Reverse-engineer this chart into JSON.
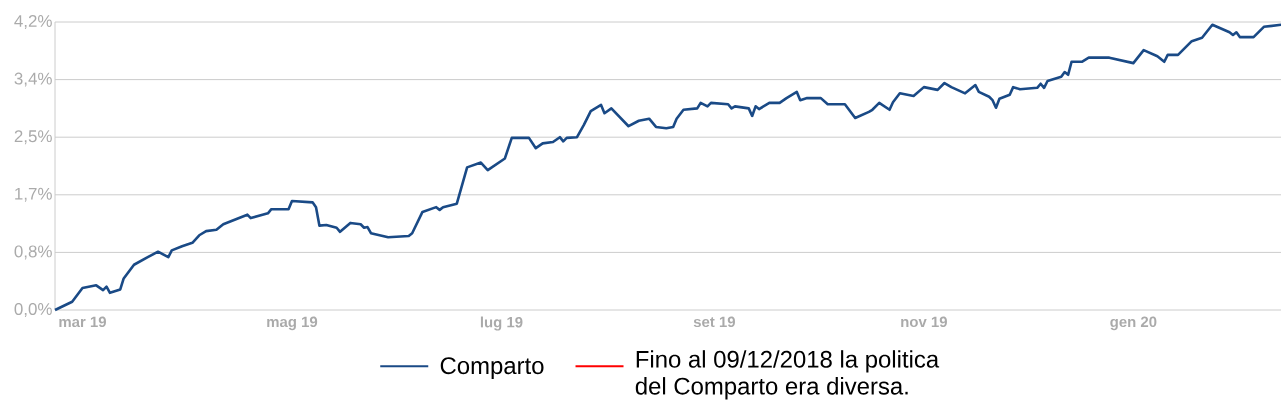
{
  "chart_data": {
    "type": "line",
    "x": [
      "2019-02-21",
      "2019-02-26",
      "2019-03-01",
      "2019-03-05",
      "2019-03-07",
      "2019-03-08",
      "2019-03-09",
      "2019-03-12",
      "2019-03-13",
      "2019-03-16",
      "2019-03-20",
      "2019-03-23",
      "2019-03-26",
      "2019-03-27",
      "2019-03-30",
      "2019-04-02",
      "2019-04-04",
      "2019-04-06",
      "2019-04-09",
      "2019-04-11",
      "2019-04-18",
      "2019-04-19",
      "2019-04-24",
      "2019-04-25",
      "2019-04-30",
      "2019-05-01",
      "2019-05-07",
      "2019-05-08",
      "2019-05-09",
      "2019-05-11",
      "2019-05-14",
      "2019-05-15",
      "2019-05-18",
      "2019-05-21",
      "2019-05-22",
      "2019-05-23",
      "2019-05-24",
      "2019-05-29",
      "2019-06-04",
      "2019-06-05",
      "2019-06-08",
      "2019-06-12",
      "2019-06-13",
      "2019-06-14",
      "2019-06-18",
      "2019-06-21",
      "2019-06-25",
      "2019-06-27",
      "2019-07-02",
      "2019-07-04",
      "2019-07-09",
      "2019-07-11",
      "2019-07-13",
      "2019-07-16",
      "2019-07-18",
      "2019-07-19",
      "2019-07-20",
      "2019-07-23",
      "2019-07-25",
      "2019-07-27",
      "2019-07-30",
      "2019-07-31",
      "2019-08-02",
      "2019-08-07",
      "2019-08-10",
      "2019-08-13",
      "2019-08-15",
      "2019-08-18",
      "2019-08-20",
      "2019-08-21",
      "2019-08-23",
      "2019-08-27",
      "2019-08-28",
      "2019-08-30",
      "2019-08-31",
      "2019-09-05",
      "2019-09-06",
      "2019-09-07",
      "2019-09-11",
      "2019-09-12",
      "2019-09-13",
      "2019-09-14",
      "2019-09-17",
      "2019-09-20",
      "2019-09-22",
      "2019-09-25",
      "2019-09-26",
      "2019-09-28",
      "2019-10-02",
      "2019-10-04",
      "2019-10-09",
      "2019-10-12",
      "2019-10-16",
      "2019-10-17",
      "2019-10-19",
      "2019-10-22",
      "2019-10-23",
      "2019-10-25",
      "2019-10-29",
      "2019-11-01",
      "2019-11-05",
      "2019-11-07",
      "2019-11-09",
      "2019-11-13",
      "2019-11-16",
      "2019-11-17",
      "2019-11-20",
      "2019-11-21",
      "2019-11-22",
      "2019-11-23",
      "2019-11-26",
      "2019-11-27",
      "2019-11-29",
      "2019-12-04",
      "2019-12-05",
      "2019-12-06",
      "2019-12-07",
      "2019-12-11",
      "2019-12-12",
      "2019-12-13",
      "2019-12-14",
      "2019-12-17",
      "2019-12-19",
      "2019-12-25",
      "2020-01-01",
      "2020-01-04",
      "2020-01-08",
      "2020-01-10",
      "2020-01-11",
      "2020-01-14",
      "2020-01-18",
      "2020-01-21",
      "2020-01-24",
      "2020-01-29",
      "2020-01-30",
      "2020-01-31",
      "2020-02-01",
      "2020-02-05",
      "2020-02-08",
      "2020-02-13"
    ],
    "series": [
      {
        "name": "Comparto",
        "color": "#1a4a86",
        "values": [
          0,
          0.12,
          0.32,
          0.36,
          0.29,
          0.34,
          0.25,
          0.3,
          0.46,
          0.66,
          0.77,
          0.85,
          0.77,
          0.87,
          0.93,
          0.98,
          1.09,
          1.15,
          1.17,
          1.25,
          1.39,
          1.34,
          1.41,
          1.47,
          1.47,
          1.59,
          1.57,
          1.5,
          1.23,
          1.24,
          1.2,
          1.14,
          1.27,
          1.25,
          1.2,
          1.21,
          1.12,
          1.06,
          1.08,
          1.12,
          1.43,
          1.5,
          1.46,
          1.5,
          1.55,
          2.08,
          2.15,
          2.04,
          2.21,
          2.51,
          2.51,
          2.36,
          2.43,
          2.45,
          2.52,
          2.46,
          2.51,
          2.52,
          2.7,
          2.9,
          2.99,
          2.87,
          2.94,
          2.68,
          2.76,
          2.79,
          2.67,
          2.65,
          2.67,
          2.79,
          2.92,
          2.94,
          3.02,
          2.97,
          3.02,
          3.0,
          2.94,
          2.97,
          2.94,
          2.83,
          2.97,
          2.93,
          3.02,
          3.02,
          3.09,
          3.18,
          3.06,
          3.09,
          3.09,
          3.0,
          3.0,
          2.8,
          2.89,
          2.92,
          3.02,
          2.92,
          3.03,
          3.16,
          3.12,
          3.25,
          3.21,
          3.31,
          3.25,
          3.16,
          3.28,
          3.18,
          3.11,
          3.06,
          2.95,
          3.08,
          3.14,
          3.25,
          3.22,
          3.24,
          3.3,
          3.24,
          3.34,
          3.4,
          3.47,
          3.43,
          3.62,
          3.62,
          3.68,
          3.68,
          3.6,
          3.79,
          3.7,
          3.62,
          3.72,
          3.72,
          3.92,
          3.97,
          4.16,
          4.05,
          4.01,
          4.05,
          3.98,
          3.98,
          4.13,
          4.16
        ]
      },
      {
        "name": "Fino al 09/12/2018 la politica del Comparto era diversa.",
        "color": "#ff0000",
        "values": [
          null,
          null,
          null,
          null,
          null,
          null,
          null,
          null,
          null,
          null,
          null,
          null,
          null,
          null,
          null,
          null,
          null,
          null,
          null,
          null,
          null,
          null,
          null,
          null,
          null,
          null,
          null,
          null,
          null,
          null,
          null,
          null,
          null,
          null,
          null,
          null,
          null,
          null,
          null,
          null,
          null,
          null,
          null,
          null,
          null,
          null,
          null,
          null,
          null,
          null,
          null,
          null,
          null,
          null,
          null,
          null,
          null,
          null,
          null,
          null,
          null,
          null,
          null,
          null,
          null,
          null,
          null,
          null,
          null,
          null,
          null,
          null,
          null,
          null,
          null,
          null,
          null,
          null,
          null,
          null,
          null,
          null,
          null,
          null,
          null,
          null,
          null,
          null,
          null,
          null,
          null,
          null,
          null,
          null,
          null,
          null,
          null,
          null,
          null,
          null,
          null,
          null,
          null,
          null,
          null,
          null,
          null,
          null,
          null,
          null,
          null,
          null,
          null,
          null,
          null,
          null,
          null,
          null,
          null,
          null,
          null,
          null,
          null,
          null,
          null,
          null,
          null,
          null,
          null,
          null,
          null,
          null,
          null,
          null,
          null,
          null,
          null,
          null,
          null,
          null
        ]
      }
    ],
    "xlim": [
      "2019-02-21",
      "2020-02-13"
    ],
    "xticks": [
      {
        "value": "2019-03-01",
        "label": "mar 19"
      },
      {
        "value": "2019-05-01",
        "label": "mag 19"
      },
      {
        "value": "2019-07-01",
        "label": "lug 19"
      },
      {
        "value": "2019-09-01",
        "label": "set 19"
      },
      {
        "value": "2019-11-01",
        "label": "nov 19"
      },
      {
        "value": "2020-01-01",
        "label": "gen 20"
      }
    ],
    "ylim": [
      0,
      4.2
    ],
    "yticks": [
      {
        "value": 0,
        "label": "0,0%"
      },
      {
        "value": 0.84,
        "label": "0,8%"
      },
      {
        "value": 1.68,
        "label": "1,7%"
      },
      {
        "value": 2.52,
        "label": "2,5%"
      },
      {
        "value": 3.36,
        "label": "3,4%"
      },
      {
        "value": 4.2,
        "label": "4,2%"
      }
    ],
    "grid": "y",
    "legend": "bottom"
  }
}
